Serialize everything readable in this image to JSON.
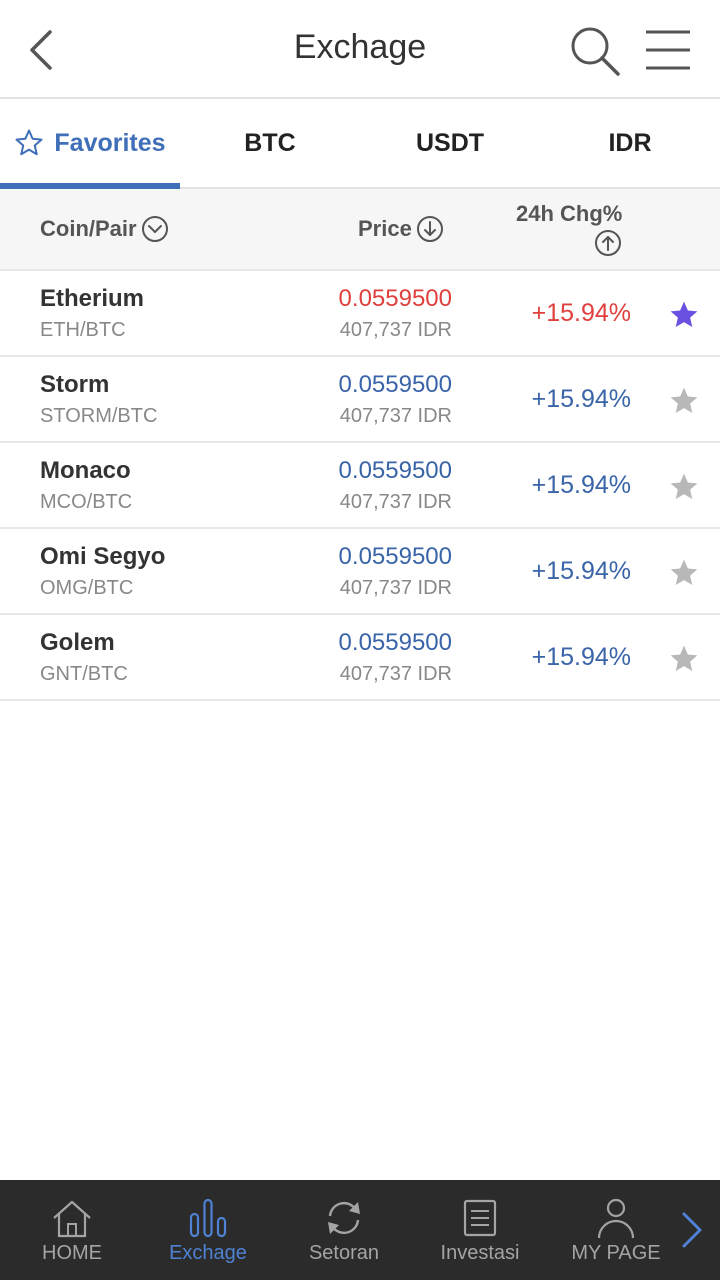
{
  "header": {
    "title": "Exchage"
  },
  "icons": {
    "back": "chevron-left-icon",
    "search": "search-icon",
    "menu": "hamburger-menu-icon"
  },
  "tabs": [
    {
      "label": "Favorites",
      "active": true
    },
    {
      "label": "BTC",
      "active": false
    },
    {
      "label": "USDT",
      "active": false
    },
    {
      "label": "IDR",
      "active": false
    }
  ],
  "columns": {
    "coin_pair": "Coin/Pair",
    "price": "Price",
    "change": "24h Chg%"
  },
  "rows": [
    {
      "name": "Etherium",
      "pair": "ETH/BTC",
      "price": "0.0559500",
      "idr": "407,737 IDR",
      "change": "+15.94%",
      "favorite": true,
      "highlight": "red"
    },
    {
      "name": "Storm",
      "pair": "STORM/BTC",
      "price": "0.0559500",
      "idr": "407,737 IDR",
      "change": "+15.94%",
      "favorite": false,
      "highlight": "blue"
    },
    {
      "name": "Monaco",
      "pair": "MCO/BTC",
      "price": "0.0559500",
      "idr": "407,737 IDR",
      "change": "+15.94%",
      "favorite": false,
      "highlight": "blue"
    },
    {
      "name": "Omi Segyo",
      "pair": "OMG/BTC",
      "price": "0.0559500",
      "idr": "407,737 IDR",
      "change": "+15.94%",
      "favorite": false,
      "highlight": "blue"
    },
    {
      "name": "Golem",
      "pair": "GNT/BTC",
      "price": "0.0559500",
      "idr": "407,737 IDR",
      "change": "+15.94%",
      "favorite": false,
      "highlight": "blue"
    }
  ],
  "bottom_nav": [
    {
      "label": "HOME",
      "icon": "home-icon",
      "active": false
    },
    {
      "label": "Exchage",
      "icon": "bar-chart-icon",
      "active": true
    },
    {
      "label": "Setoran",
      "icon": "refresh-icon",
      "active": false
    },
    {
      "label": "Investasi",
      "icon": "document-icon",
      "active": false
    },
    {
      "label": "MY PAGE",
      "icon": "user-icon",
      "active": false
    }
  ],
  "colors": {
    "accent": "#3f6fb8",
    "up_red": "#e0403d",
    "price_blue": "#3a64a8",
    "favorite_star": "#6a4fe0",
    "inactive_star": "#b8b8b8",
    "nav_bg": "#2b2b2b"
  }
}
